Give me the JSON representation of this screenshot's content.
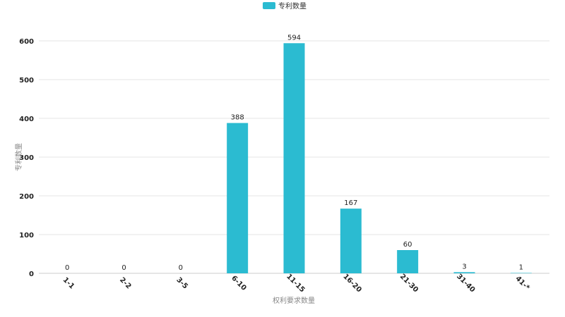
{
  "chart_data": {
    "type": "bar",
    "legend": {
      "position": "top-center",
      "entries": [
        "专利数量"
      ]
    },
    "categories": [
      "1-1",
      "2-2",
      "3-5",
      "6-10",
      "11-15",
      "16-20",
      "21-30",
      "31-40",
      "41-*"
    ],
    "series": [
      {
        "name": "专利数量",
        "color": "#2bbbd1",
        "values": [
          0,
          0,
          0,
          388,
          594,
          167,
          60,
          3,
          1
        ]
      }
    ],
    "xlabel": "权利要求数量",
    "ylabel": "专利数量",
    "ylim": [
      0,
      600
    ],
    "yticks": [
      0,
      100,
      200,
      300,
      400,
      500,
      600
    ],
    "grid": true,
    "data_labels": true,
    "colors": {
      "bar": "#2bbbd1",
      "grid": "#e6e6e6",
      "axis": "#cccccc",
      "tick_text": "#222222",
      "axis_title": "#888888"
    }
  }
}
